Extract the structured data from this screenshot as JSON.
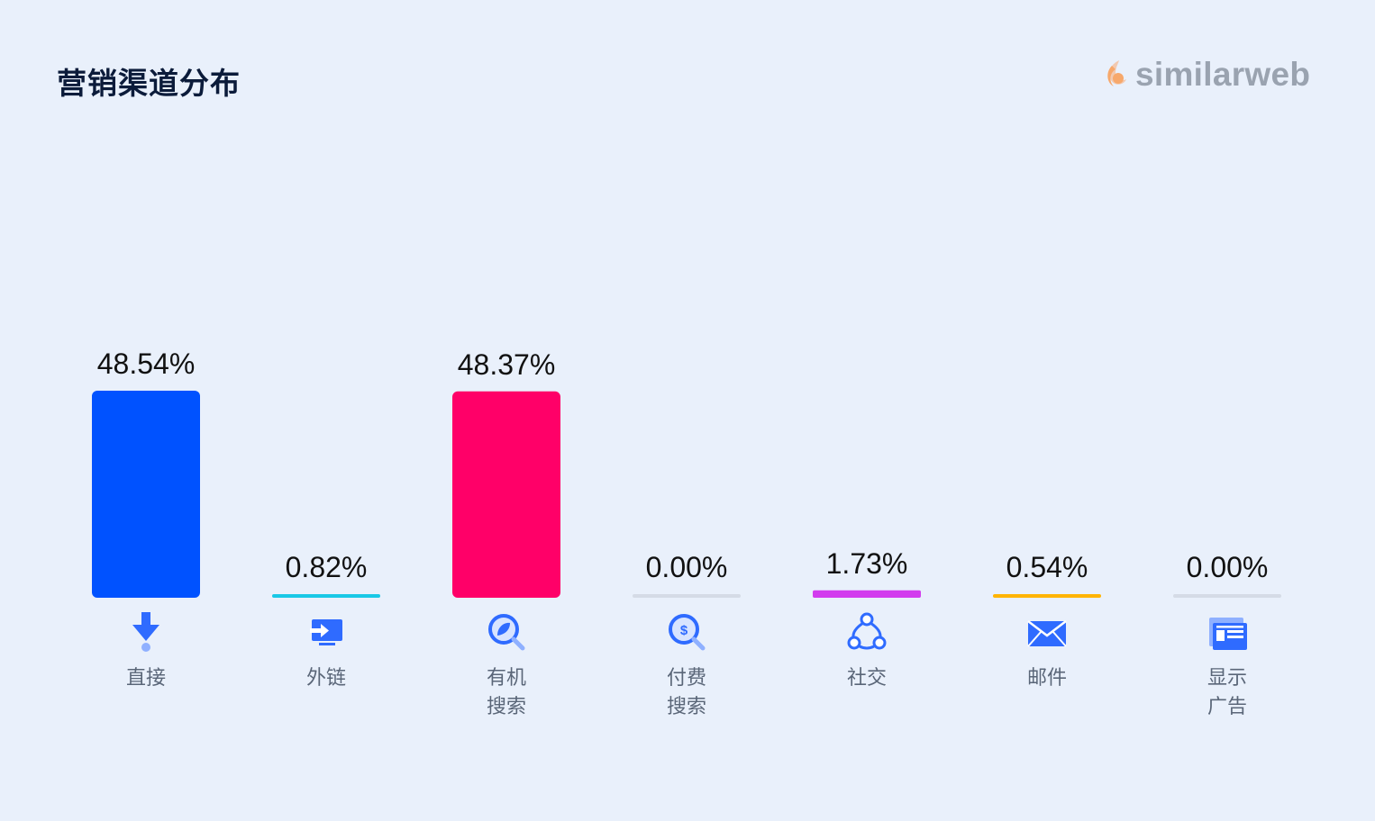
{
  "header": {
    "title": "营销渠道分布",
    "brand": "similarweb",
    "brand_colors": [
      "#f7a86b",
      "#f2c9b0"
    ]
  },
  "chart_data": {
    "type": "bar",
    "title": "营销渠道分布",
    "xlabel": "",
    "ylabel": "",
    "ylim": [
      0,
      48.54
    ],
    "grid": false,
    "legend": "none",
    "categories": [
      {
        "label": [
          "直接"
        ],
        "icon": "direct-arrow-icon"
      },
      {
        "label": [
          "外链"
        ],
        "icon": "referral-monitor-icon"
      },
      {
        "label": [
          "有机",
          "搜索"
        ],
        "icon": "organic-search-icon"
      },
      {
        "label": [
          "付费",
          "搜索"
        ],
        "icon": "paid-search-icon"
      },
      {
        "label": [
          "社交"
        ],
        "icon": "social-network-icon"
      },
      {
        "label": [
          "邮件"
        ],
        "icon": "email-envelope-icon"
      },
      {
        "label": [
          "显示",
          "广告"
        ],
        "icon": "display-ads-icon"
      }
    ],
    "values": [
      48.54,
      0.82,
      48.37,
      0.0,
      1.73,
      0.54,
      0.0
    ],
    "value_labels": [
      "48.54%",
      "0.82%",
      "48.37%",
      "0.00%",
      "1.73%",
      "0.54%",
      "0.00%"
    ],
    "colors": [
      "#0052ff",
      "#19c8e6",
      "#ff0068",
      "#d5dbe6",
      "#d23cee",
      "#ffb400",
      "#d5dbe6"
    ]
  }
}
